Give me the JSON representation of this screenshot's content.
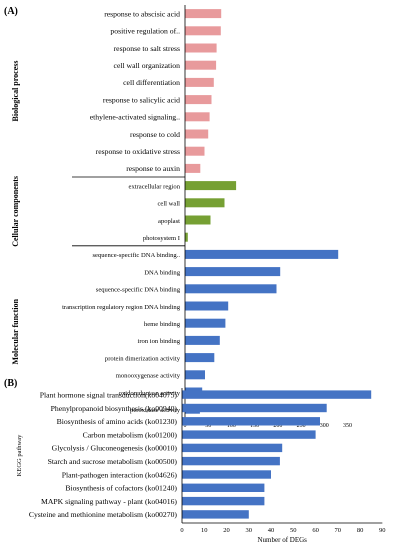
{
  "chart_data": [
    {
      "type": "bar",
      "orientation": "horizontal",
      "panel_label": "(A)",
      "xlabel": "Number of DEG",
      "xlim": [
        0,
        350
      ],
      "xticks": [
        0,
        50,
        100,
        150,
        200,
        250,
        300,
        350
      ],
      "groups": [
        {
          "name": "Biological process",
          "color": "#e89a9c",
          "categories": [
            "response to abscisic acid",
            "positive regulation of..",
            "response to salt stress",
            "cell wall organization",
            "cell differentiation",
            "response to salicylic acid",
            "ethylene-activated signaling..",
            "response to cold",
            "response to oxidative stress",
            "response to auxin"
          ],
          "values": [
            78,
            77,
            68,
            67,
            62,
            57,
            53,
            50,
            42,
            33
          ]
        },
        {
          "name": "Cellular components",
          "color": "#76a033",
          "categories": [
            "extracellular region",
            "cell wall",
            "apoplast",
            "photosystem I"
          ],
          "values": [
            110,
            85,
            55,
            6
          ]
        },
        {
          "name": "Molecular function",
          "color": "#4473c4",
          "categories": [
            "sequence-specific DNA binding..",
            "DNA binding",
            "sequence-specific DNA binding",
            "transcription regulatory region DNA binding",
            "heme binding",
            "iron ion binding",
            "protein dimerization activity",
            "monooxygenase activity",
            "oxidoreductase activity",
            "peroxidase activity"
          ],
          "values": [
            330,
            205,
            197,
            93,
            87,
            75,
            63,
            43,
            37,
            32
          ]
        }
      ]
    },
    {
      "type": "bar",
      "orientation": "horizontal",
      "panel_label": "(B)",
      "ylabel": "KEGG pathway",
      "xlabel": "Number of DEGs",
      "xlim": [
        0,
        90
      ],
      "xticks": [
        0,
        10,
        20,
        30,
        40,
        50,
        60,
        70,
        80,
        90
      ],
      "color": "#4473c4",
      "categories": [
        "Plant hormone signal transduction(ko04075)",
        "Phenylpropanoid biosynthesis (ko00940)",
        "Biosynthesis of amino acids (ko01230)",
        "Carbon metabolism (ko01200)",
        "Glycolysis / Gluconeogenesis (ko00010)",
        "Starch and sucrose metabolism (ko00500)",
        "Plant-pathogen interaction (ko04626)",
        "Biosynthesis of cofactors (ko01240)",
        "MAPK signaling pathway - plant (ko04016)",
        "Cysteine and methionine metabolism (ko00270)"
      ],
      "values": [
        85,
        65,
        62,
        60,
        45,
        44,
        40,
        37,
        37,
        30
      ]
    }
  ]
}
